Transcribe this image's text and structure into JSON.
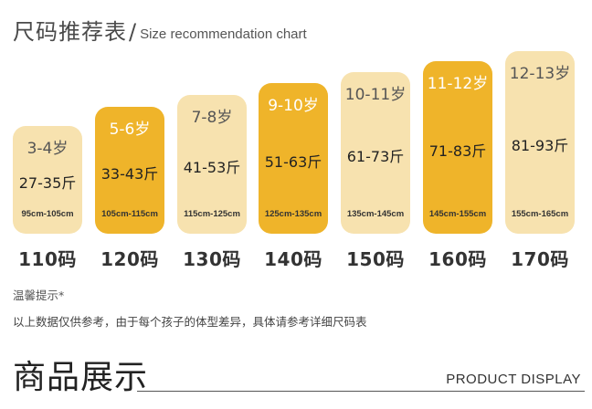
{
  "header": {
    "title_cn": "尺码推荐表",
    "slash": "/",
    "title_en": "Size recommendation chart"
  },
  "colors": {
    "light_card": "#F7E2AF",
    "dark_card": "#EFB42A"
  },
  "cards": [
    {
      "age": "3-4岁",
      "weight": "27-35斤",
      "height": "95cm-105cm",
      "size": "110码",
      "style": "light"
    },
    {
      "age": "5-6岁",
      "weight": "33-43斤",
      "height": "105cm-115cm",
      "size": "120码",
      "style": "dark"
    },
    {
      "age": "7-8岁",
      "weight": "41-53斤",
      "height": "115cm-125cm",
      "size": "130码",
      "style": "light"
    },
    {
      "age": "9-10岁",
      "weight": "51-63斤",
      "height": "125cm-135cm",
      "size": "140码",
      "style": "dark"
    },
    {
      "age": "10-11岁",
      "weight": "61-73斤",
      "height": "135cm-145cm",
      "size": "150码",
      "style": "light"
    },
    {
      "age": "11-12岁",
      "weight": "71-83斤",
      "height": "145cm-155cm",
      "size": "160码",
      "style": "dark"
    },
    {
      "age": "12-13岁",
      "weight": "81-93斤",
      "height": "155cm-165cm",
      "size": "170码",
      "style": "light"
    }
  ],
  "tips": {
    "title": "温馨提示*",
    "text": "以上数据仅供参考，由于每个孩子的体型差异，具体请参考详细尺码表"
  },
  "section": {
    "title_cn": "商品展示",
    "title_en": "PRODUCT DISPLAY"
  }
}
